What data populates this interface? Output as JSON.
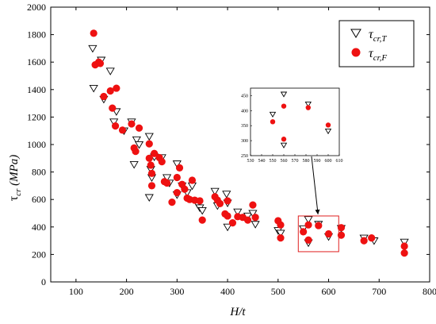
{
  "chart_data": {
    "type": "scatter",
    "xlabel": "H/t",
    "ylabel": "τcr (MPa)",
    "xlim": [
      50,
      800
    ],
    "ylim": [
      0,
      2000
    ],
    "x_ticks": [
      100,
      200,
      300,
      400,
      500,
      600,
      700,
      800
    ],
    "y_ticks": [
      0,
      200,
      400,
      600,
      800,
      1000,
      1200,
      1400,
      1600,
      1800,
      2000
    ],
    "grid": false,
    "legend_position": "top-right",
    "series": [
      {
        "name": "τcr,T",
        "marker": "open-down-triangle",
        "color": "#000000",
        "points": [
          [
            133,
            1700
          ],
          [
            135,
            1410
          ],
          [
            150,
            1615
          ],
          [
            155,
            1330
          ],
          [
            168,
            1535
          ],
          [
            175,
            1165
          ],
          [
            180,
            1240
          ],
          [
            195,
            1100
          ],
          [
            210,
            1165
          ],
          [
            215,
            855
          ],
          [
            220,
            1035
          ],
          [
            225,
            1000
          ],
          [
            245,
            1060
          ],
          [
            245,
            615
          ],
          [
            248,
            820
          ],
          [
            250,
            760
          ],
          [
            255,
            910
          ],
          [
            270,
            905
          ],
          [
            280,
            760
          ],
          [
            285,
            720
          ],
          [
            300,
            860
          ],
          [
            300,
            635
          ],
          [
            310,
            700
          ],
          [
            320,
            650
          ],
          [
            330,
            700
          ],
          [
            340,
            570
          ],
          [
            345,
            540
          ],
          [
            350,
            520
          ],
          [
            375,
            660
          ],
          [
            380,
            555
          ],
          [
            398,
            640
          ],
          [
            400,
            575
          ],
          [
            400,
            400
          ],
          [
            420,
            510
          ],
          [
            440,
            480
          ],
          [
            450,
            500
          ],
          [
            455,
            420
          ],
          [
            500,
            375
          ],
          [
            505,
            355
          ],
          [
            550,
            388
          ],
          [
            560,
            455
          ],
          [
            560,
            285
          ],
          [
            580,
            420
          ],
          [
            600,
            330
          ],
          [
            625,
            390
          ],
          [
            670,
            320
          ],
          [
            690,
            300
          ],
          [
            750,
            290
          ]
        ]
      },
      {
        "name": "τcr,F",
        "marker": "filled-circle",
        "color": "#ee1111",
        "points": [
          [
            135,
            1810
          ],
          [
            138,
            1580
          ],
          [
            145,
            1600
          ],
          [
            148,
            1590
          ],
          [
            155,
            1350
          ],
          [
            168,
            1390
          ],
          [
            172,
            1265
          ],
          [
            178,
            1135
          ],
          [
            180,
            1410
          ],
          [
            192,
            1105
          ],
          [
            210,
            1150
          ],
          [
            215,
            975
          ],
          [
            218,
            950
          ],
          [
            225,
            1120
          ],
          [
            245,
            1005
          ],
          [
            245,
            900
          ],
          [
            248,
            850
          ],
          [
            250,
            790
          ],
          [
            250,
            700
          ],
          [
            255,
            935
          ],
          [
            265,
            905
          ],
          [
            270,
            875
          ],
          [
            275,
            730
          ],
          [
            280,
            720
          ],
          [
            290,
            580
          ],
          [
            300,
            760
          ],
          [
            300,
            650
          ],
          [
            305,
            830
          ],
          [
            310,
            710
          ],
          [
            315,
            675
          ],
          [
            320,
            610
          ],
          [
            325,
            600
          ],
          [
            330,
            740
          ],
          [
            335,
            595
          ],
          [
            345,
            590
          ],
          [
            350,
            450
          ],
          [
            375,
            620
          ],
          [
            380,
            595
          ],
          [
            385,
            570
          ],
          [
            395,
            495
          ],
          [
            400,
            590
          ],
          [
            400,
            480
          ],
          [
            410,
            430
          ],
          [
            420,
            475
          ],
          [
            430,
            470
          ],
          [
            440,
            450
          ],
          [
            450,
            560
          ],
          [
            455,
            470
          ],
          [
            500,
            445
          ],
          [
            505,
            415
          ],
          [
            505,
            320
          ],
          [
            550,
            365
          ],
          [
            560,
            415
          ],
          [
            560,
            305
          ],
          [
            580,
            410
          ],
          [
            600,
            350
          ],
          [
            625,
            340
          ],
          [
            625,
            395
          ],
          [
            670,
            300
          ],
          [
            685,
            320
          ],
          [
            750,
            260
          ],
          [
            750,
            210
          ]
        ]
      }
    ],
    "inset": {
      "xlim": [
        530,
        610
      ],
      "ylim": [
        250,
        475
      ],
      "x_ticks": [
        530,
        540,
        550,
        560,
        570,
        580,
        590,
        600,
        610
      ],
      "y_ticks": [
        250,
        300,
        350,
        400,
        450
      ],
      "series": [
        {
          "name": "τcr,T",
          "points": [
            [
              550,
              388
            ],
            [
              560,
              455
            ],
            [
              560,
              285
            ],
            [
              582,
              422
            ],
            [
              600,
              332
            ]
          ]
        },
        {
          "name": "τcr,F",
          "points": [
            [
              550,
              363
            ],
            [
              560,
              415
            ],
            [
              560,
              305
            ],
            [
              582,
              410
            ],
            [
              600,
              352
            ]
          ]
        }
      ],
      "zoom_box": {
        "xlim": [
          540,
          620
        ],
        "ylim": [
          220,
          480
        ]
      },
      "pointer": "arrow from zoomed inset down to the marked region"
    }
  }
}
